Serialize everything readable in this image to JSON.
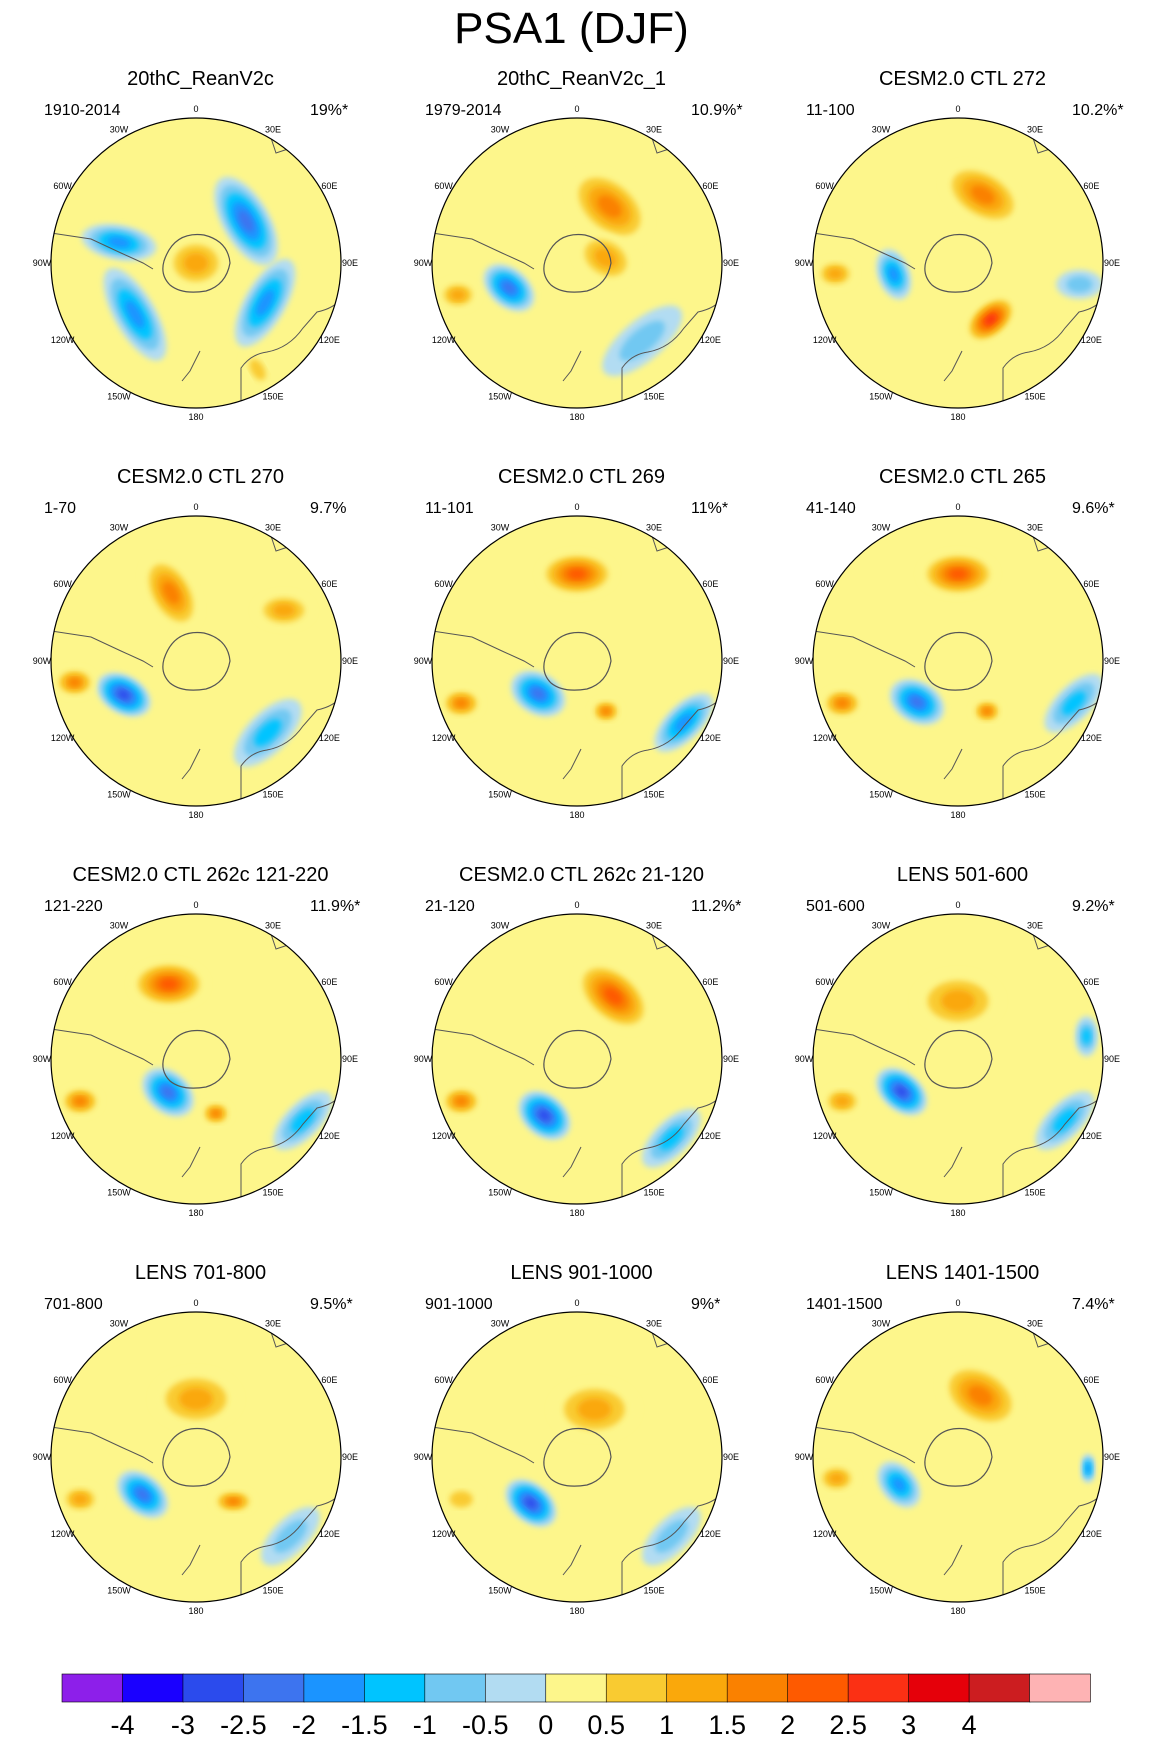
{
  "title": "PSA1 (DJF)",
  "longitude_labels": [
    "0",
    "30E",
    "60E",
    "90E",
    "120E",
    "150E",
    "180",
    "150W",
    "120W",
    "90W",
    "60W",
    "30W"
  ],
  "panels": [
    {
      "title": "20thC_ReanV2c",
      "period": "1910-2014",
      "variance": "19%*",
      "features": [
        {
          "lon": 50,
          "r": 0.45,
          "rx": 0.34,
          "ry": 0.16,
          "rot": 60,
          "value": -2
        },
        {
          "lon": 120,
          "r": 0.55,
          "rx": 0.34,
          "ry": 0.14,
          "rot": 120,
          "value": -1.5
        },
        {
          "lon": -130,
          "r": 0.55,
          "rx": 0.36,
          "ry": 0.14,
          "rot": -120,
          "value": -1.5
        },
        {
          "lon": -75,
          "r": 0.55,
          "rx": 0.26,
          "ry": 0.12,
          "rot": 10,
          "value": -1.5
        },
        {
          "lon": 0,
          "r": 0.0,
          "rx": 0.22,
          "ry": 0.18,
          "rot": 0,
          "value": 1
        },
        {
          "lon": 150,
          "r": 0.85,
          "rx": 0.14,
          "ry": 0.08,
          "rot": 60,
          "value": 0.5
        }
      ]
    },
    {
      "title": "20thC_ReanV2c_1",
      "period": "1979-2014",
      "variance": "10.9%*",
      "features": [
        {
          "lon": 30,
          "r": 0.45,
          "rx": 0.32,
          "ry": 0.2,
          "rot": 40,
          "value": 1.5
        },
        {
          "lon": 80,
          "r": 0.2,
          "rx": 0.22,
          "ry": 0.16,
          "rot": 30,
          "value": 1
        },
        {
          "lon": -110,
          "r": 0.5,
          "rx": 0.2,
          "ry": 0.13,
          "rot": 40,
          "value": -2
        },
        {
          "lon": -105,
          "r": 0.85,
          "rx": 0.14,
          "ry": 0.1,
          "rot": 0,
          "value": 1
        },
        {
          "lon": 140,
          "r": 0.7,
          "rx": 0.34,
          "ry": 0.14,
          "rot": -40,
          "value": -0.5
        }
      ]
    },
    {
      "title": "CESM2.0 CTL 272",
      "period": "11-100",
      "variance": "10.2%*",
      "features": [
        {
          "lon": 20,
          "r": 0.5,
          "rx": 0.3,
          "ry": 0.18,
          "rot": 30,
          "value": 1.5
        },
        {
          "lon": 150,
          "r": 0.45,
          "rx": 0.2,
          "ry": 0.12,
          "rot": -40,
          "value": 2.5
        },
        {
          "lon": -100,
          "r": 0.45,
          "rx": 0.18,
          "ry": 0.11,
          "rot": 70,
          "value": -1.5
        },
        {
          "lon": -95,
          "r": 0.85,
          "rx": 0.14,
          "ry": 0.1,
          "rot": 0,
          "value": 1
        },
        {
          "lon": 100,
          "r": 0.85,
          "rx": 0.16,
          "ry": 0.1,
          "rot": 0,
          "value": -0.5
        }
      ]
    },
    {
      "title": "CESM2.0 CTL 270",
      "period": "1-70",
      "variance": "9.7%",
      "features": [
        {
          "lon": -20,
          "r": 0.5,
          "rx": 0.28,
          "ry": 0.16,
          "rot": 60,
          "value": 1.5
        },
        {
          "lon": -115,
          "r": 0.55,
          "rx": 0.2,
          "ry": 0.13,
          "rot": 30,
          "value": -2.5
        },
        {
          "lon": -100,
          "r": 0.85,
          "rx": 0.14,
          "ry": 0.1,
          "rot": 0,
          "value": 1.5
        },
        {
          "lon": 135,
          "r": 0.7,
          "rx": 0.3,
          "ry": 0.14,
          "rot": -45,
          "value": -1
        },
        {
          "lon": 60,
          "r": 0.7,
          "rx": 0.2,
          "ry": 0.12,
          "rot": 0,
          "value": 1
        }
      ]
    },
    {
      "title": "CESM2.0 CTL 269",
      "period": "11-101",
      "variance": "11%*",
      "features": [
        {
          "lon": 0,
          "r": 0.6,
          "rx": 0.26,
          "ry": 0.15,
          "rot": 0,
          "value": 2
        },
        {
          "lon": -130,
          "r": 0.35,
          "rx": 0.2,
          "ry": 0.14,
          "rot": 30,
          "value": -2
        },
        {
          "lon": -110,
          "r": 0.85,
          "rx": 0.14,
          "ry": 0.1,
          "rot": 0,
          "value": 1.5
        },
        {
          "lon": 120,
          "r": 0.85,
          "rx": 0.26,
          "ry": 0.12,
          "rot": -45,
          "value": -1.5
        },
        {
          "lon": 150,
          "r": 0.4,
          "rx": 0.1,
          "ry": 0.08,
          "rot": 0,
          "value": 1.5
        }
      ]
    },
    {
      "title": "CESM2.0 CTL 265",
      "period": "41-140",
      "variance": "9.6%*",
      "features": [
        {
          "lon": 0,
          "r": 0.6,
          "rx": 0.26,
          "ry": 0.15,
          "rot": 0,
          "value": 2
        },
        {
          "lon": -135,
          "r": 0.4,
          "rx": 0.2,
          "ry": 0.14,
          "rot": 30,
          "value": -2
        },
        {
          "lon": -110,
          "r": 0.85,
          "rx": 0.14,
          "ry": 0.1,
          "rot": 0,
          "value": 1.5
        },
        {
          "lon": 110,
          "r": 0.85,
          "rx": 0.26,
          "ry": 0.12,
          "rot": -45,
          "value": -1
        },
        {
          "lon": 150,
          "r": 0.4,
          "rx": 0.1,
          "ry": 0.08,
          "rot": 0,
          "value": 1.5
        }
      ]
    },
    {
      "title": "CESM2.0 CTL 262c 121-220",
      "period": "121-220",
      "variance": "11.9%*",
      "features": [
        {
          "lon": -20,
          "r": 0.55,
          "rx": 0.26,
          "ry": 0.16,
          "rot": 0,
          "value": 2
        },
        {
          "lon": -140,
          "r": 0.3,
          "rx": 0.2,
          "ry": 0.14,
          "rot": 40,
          "value": -2
        },
        {
          "lon": -110,
          "r": 0.85,
          "rx": 0.14,
          "ry": 0.1,
          "rot": 0,
          "value": 1.5
        },
        {
          "lon": 120,
          "r": 0.85,
          "rx": 0.26,
          "ry": 0.12,
          "rot": -45,
          "value": -1
        },
        {
          "lon": 160,
          "r": 0.4,
          "rx": 0.1,
          "ry": 0.08,
          "rot": 0,
          "value": 1.5
        }
      ]
    },
    {
      "title": "CESM2.0 CTL 262c 21-120",
      "period": "21-120",
      "variance": "11.2%*",
      "features": [
        {
          "lon": 30,
          "r": 0.5,
          "rx": 0.3,
          "ry": 0.18,
          "rot": 40,
          "value": 2
        },
        {
          "lon": -150,
          "r": 0.45,
          "rx": 0.2,
          "ry": 0.14,
          "rot": 40,
          "value": -2.5
        },
        {
          "lon": -110,
          "r": 0.85,
          "rx": 0.14,
          "ry": 0.1,
          "rot": 0,
          "value": 1.5
        },
        {
          "lon": 130,
          "r": 0.85,
          "rx": 0.26,
          "ry": 0.12,
          "rot": -45,
          "value": -1
        }
      ]
    },
    {
      "title": "LENS 501-600",
      "period": "501-600",
      "variance": "9.2%*",
      "features": [
        {
          "lon": 0,
          "r": 0.4,
          "rx": 0.3,
          "ry": 0.2,
          "rot": 0,
          "value": 1
        },
        {
          "lon": -120,
          "r": 0.45,
          "rx": 0.2,
          "ry": 0.13,
          "rot": 40,
          "value": -2.5
        },
        {
          "lon": -110,
          "r": 0.85,
          "rx": 0.14,
          "ry": 0.1,
          "rot": 0,
          "value": 1
        },
        {
          "lon": 120,
          "r": 0.85,
          "rx": 0.26,
          "ry": 0.12,
          "rot": -45,
          "value": -1
        },
        {
          "lon": 80,
          "r": 0.9,
          "rx": 0.14,
          "ry": 0.08,
          "rot": 90,
          "value": -1
        }
      ]
    },
    {
      "title": "LENS 701-800",
      "period": "701-800",
      "variance": "9.5%*",
      "features": [
        {
          "lon": 0,
          "r": 0.4,
          "rx": 0.3,
          "ry": 0.2,
          "rot": 0,
          "value": 1
        },
        {
          "lon": -125,
          "r": 0.45,
          "rx": 0.2,
          "ry": 0.13,
          "rot": 40,
          "value": -2
        },
        {
          "lon": -110,
          "r": 0.85,
          "rx": 0.14,
          "ry": 0.1,
          "rot": 0,
          "value": 1
        },
        {
          "lon": 140,
          "r": 0.4,
          "rx": 0.14,
          "ry": 0.08,
          "rot": 0,
          "value": 1.5
        },
        {
          "lon": 130,
          "r": 0.85,
          "rx": 0.26,
          "ry": 0.12,
          "rot": -45,
          "value": -0.5
        }
      ]
    },
    {
      "title": "LENS 901-1000",
      "period": "901-1000",
      "variance": "9%*",
      "features": [
        {
          "lon": 20,
          "r": 0.35,
          "rx": 0.3,
          "ry": 0.2,
          "rot": 0,
          "value": 1
        },
        {
          "lon": -135,
          "r": 0.45,
          "rx": 0.2,
          "ry": 0.13,
          "rot": 40,
          "value": -2.5
        },
        {
          "lon": -110,
          "r": 0.85,
          "rx": 0.14,
          "ry": 0.1,
          "rot": 0,
          "value": 0.5
        },
        {
          "lon": 130,
          "r": 0.85,
          "rx": 0.26,
          "ry": 0.12,
          "rot": -45,
          "value": -0.5
        }
      ]
    },
    {
      "title": "LENS 1401-1500",
      "period": "1401-1500",
      "variance": "7.4%*",
      "features": [
        {
          "lon": 20,
          "r": 0.45,
          "rx": 0.3,
          "ry": 0.2,
          "rot": 30,
          "value": 1.5
        },
        {
          "lon": -115,
          "r": 0.45,
          "rx": 0.18,
          "ry": 0.12,
          "rot": 50,
          "value": -1.5
        },
        {
          "lon": -100,
          "r": 0.85,
          "rx": 0.14,
          "ry": 0.1,
          "rot": 0,
          "value": 1
        },
        {
          "lon": 95,
          "r": 0.9,
          "rx": 0.1,
          "ry": 0.05,
          "rot": 90,
          "value": -1.5
        }
      ]
    }
  ],
  "colorbar": {
    "colors": [
      "#8d1fea",
      "#1a00ff",
      "#2b4bed",
      "#3d74ef",
      "#1b94ff",
      "#00c4ff",
      "#71c8f2",
      "#b2dcf2",
      "#fdf68b",
      "#f9cb31",
      "#faa80b",
      "#fa8100",
      "#fe5a00",
      "#fb3014",
      "#e5000a",
      "#cc1d20",
      "#feb3b4"
    ],
    "labels": [
      "-4",
      "-3",
      "-2.5",
      "-2",
      "-1.5",
      "-1",
      "-0.5",
      "0",
      "0.5",
      "1",
      "1.5",
      "2",
      "2.5",
      "3",
      "4"
    ]
  }
}
